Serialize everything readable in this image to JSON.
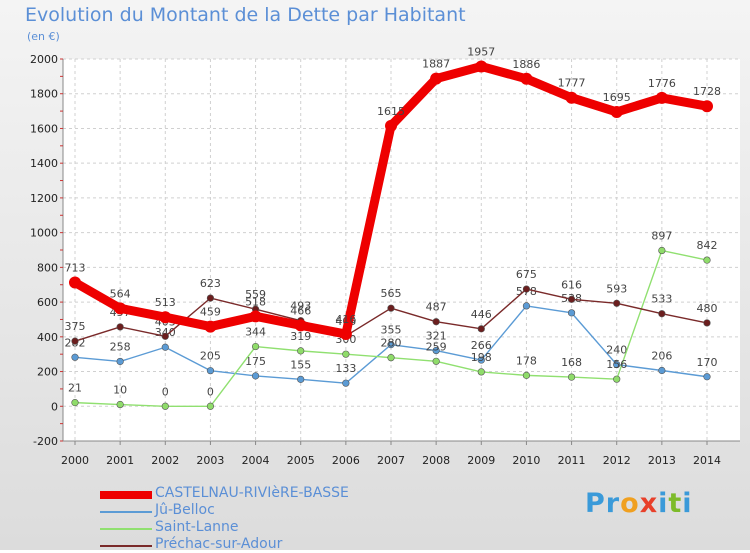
{
  "header": {
    "title": "Evolution du Montant de la Dette par Habitant",
    "unit": "(en €)"
  },
  "logo": {
    "letters": [
      "P",
      "r",
      "o",
      "x",
      "i",
      "t",
      "i"
    ],
    "colors": [
      "#3a9ad9",
      "#3a9ad9",
      "#f0a020",
      "#e8402a",
      "#3a9ad9",
      "#7dbb2a",
      "#3a9ad9"
    ]
  },
  "chart_data": {
    "type": "line",
    "x": [
      "2000",
      "2001",
      "2002",
      "2003",
      "2004",
      "2005",
      "2006",
      "2007",
      "2008",
      "2009",
      "2010",
      "2011",
      "2012",
      "2013",
      "2014"
    ],
    "ylim": [
      -200,
      2000
    ],
    "yticks": [
      "-200",
      "0",
      "200",
      "400",
      "600",
      "800",
      "1000",
      "1200",
      "1400",
      "1600",
      "1800",
      "2000"
    ],
    "grid": true,
    "legend_position": "bottom",
    "series": [
      {
        "name": "CASTELNAU-RIVIèRE-BASSE",
        "color": "#ee0000",
        "marker_color": "#ee0000",
        "width": "thick",
        "values": [
          713,
          564,
          513,
          459,
          518,
          466,
          416,
          1615,
          1887,
          1957,
          1886,
          1777,
          1695,
          1776,
          1728
        ]
      },
      {
        "name": "Jû-Belloc",
        "color": "#5b9bd5",
        "marker_color": "#5b9bd5",
        "width": "thin",
        "values": [
          282,
          258,
          340,
          205,
          175,
          155,
          133,
          355,
          321,
          266,
          578,
          538,
          240,
          206,
          170
        ]
      },
      {
        "name": "Saint-Lanne",
        "color": "#90e070",
        "marker_color": "#8fdc6a",
        "width": "thin",
        "values": [
          21,
          10,
          0,
          0,
          344,
          319,
          300,
          280,
          259,
          198,
          178,
          168,
          156,
          897,
          842
        ]
      },
      {
        "name": "Préchac-sur-Adour",
        "color": "#7a2a2a",
        "marker_color": "#6b1e1e",
        "width": "thin",
        "values": [
          375,
          457,
          403,
          623,
          559,
          493,
          405,
          565,
          487,
          446,
          675,
          616,
          593,
          533,
          480
        ]
      }
    ]
  }
}
